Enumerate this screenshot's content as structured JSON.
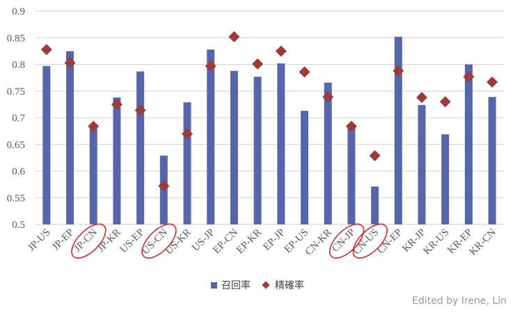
{
  "chart_data": {
    "type": "bar",
    "title": "",
    "xlabel": "",
    "ylabel": "",
    "ylim": [
      0.5,
      0.9
    ],
    "yticks": [
      "0.5",
      "0.55",
      "0.6",
      "0.65",
      "0.7",
      "0.75",
      "0.8",
      "0.85",
      "0.9"
    ],
    "grid": true,
    "legend_position": "bottom",
    "categories": [
      "JP-US",
      "JP-EP",
      "JP-CN",
      "JP-KR",
      "US-EP",
      "US-CN",
      "US-KR",
      "US-JP",
      "EP-CN",
      "EP-KR",
      "EP-JP",
      "EP-US",
      "CN-KR",
      "CN-JP",
      "CN-US",
      "CN-EP",
      "KR-JP",
      "KR-US",
      "KR-EP",
      "KR-CN"
    ],
    "series": [
      {
        "name": "召回率",
        "type": "bar",
        "color": "#5566AD",
        "values": [
          0.797,
          0.825,
          0.684,
          0.738,
          0.787,
          0.629,
          0.729,
          0.828,
          0.788,
          0.777,
          0.802,
          0.713,
          0.766,
          0.683,
          0.571,
          0.852,
          0.724,
          0.669,
          0.8,
          0.739
        ]
      },
      {
        "name": "精確率",
        "type": "scatter-diamond",
        "color": "#9E3A38",
        "values": [
          0.828,
          0.803,
          0.684,
          0.725,
          0.714,
          0.572,
          0.67,
          0.797,
          0.852,
          0.801,
          0.825,
          0.786,
          0.739,
          0.684,
          0.629,
          0.788,
          0.738,
          0.73,
          0.777,
          0.767
        ]
      }
    ],
    "annotations": {
      "circled_categories": [
        "JP-CN",
        "US-CN",
        "CN-JP",
        "CN-US"
      ],
      "circle_color": "#D42A2A"
    }
  },
  "legend": {
    "recall_label": "召回率",
    "precision_label": "精確率"
  },
  "credit": "Edited by Irene, Lin"
}
